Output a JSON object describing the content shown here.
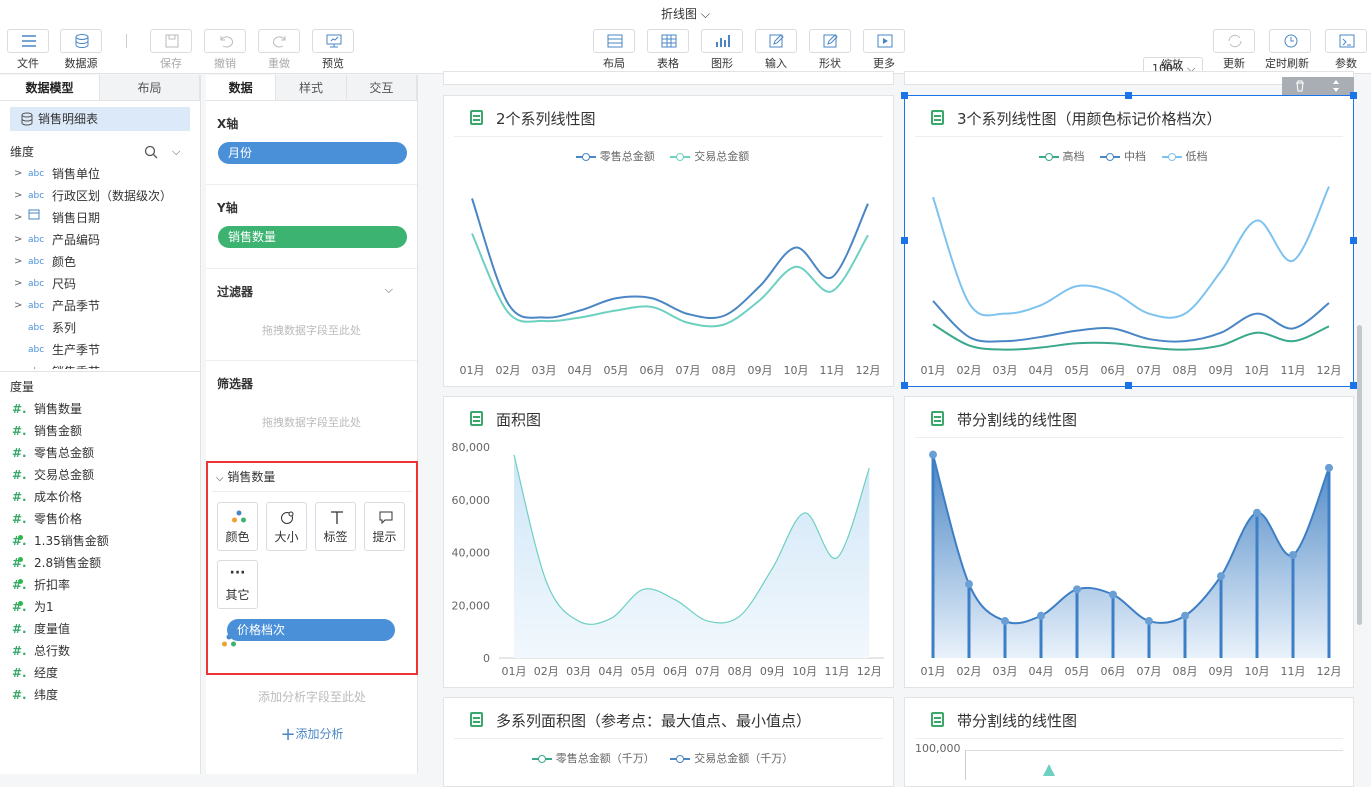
{
  "window": {
    "title": "折线图 ⌵"
  },
  "toolbar": {
    "file": "文件",
    "datasource": "数据源",
    "save": "保存",
    "undo": "撤销",
    "redo": "重做",
    "preview": "预览",
    "layout": "布局",
    "table": "表格",
    "graph": "图形",
    "input": "输入",
    "shape": "形状",
    "more": "更多",
    "zoom_value": "100%",
    "zoom": "缩放",
    "update": "更新",
    "timed_refresh": "定时刷新",
    "params": "参数"
  },
  "left": {
    "tab_model": "数据模型",
    "tab_layout": "布局",
    "table_name": "销售明细表",
    "dims_title": "维度",
    "dims": [
      "销售单位",
      "行政区划（数据级次）",
      "销售日期",
      "产品编码",
      "颜色",
      "尺码",
      "产品季节",
      "系列",
      "生产季节",
      "销售季节"
    ],
    "measures_title": "度量",
    "measures": [
      "销售数量",
      "销售金额",
      "零售总金额",
      "交易总金额",
      "成本价格",
      "零售价格",
      "1.35销售金额",
      "2.8销售金额",
      "折扣率",
      "为1",
      "度量值",
      "总行数",
      "经度",
      "纬度"
    ]
  },
  "mid": {
    "tab_data": "数据",
    "tab_style": "样式",
    "tab_interact": "交互",
    "xaxis": "X轴",
    "xfield": "月份",
    "yaxis": "Y轴",
    "yfield": "销售数量",
    "filter": "过滤器",
    "filter_drop": "拖拽数据字段至此处",
    "selector": "筛选器",
    "selector_drop": "拖拽数据字段至此处",
    "measure_section": "销售数量",
    "btn_color": "颜色",
    "btn_size": "大小",
    "btn_label": "标签",
    "btn_tip": "提示",
    "btn_other": "其它",
    "color_field": "价格档次",
    "analysis_drop": "添加分析字段至此处",
    "add_analysis": "添加分析"
  },
  "months": [
    "01月",
    "02月",
    "03月",
    "04月",
    "05月",
    "06月",
    "07月",
    "08月",
    "09月",
    "10月",
    "11月",
    "12月"
  ],
  "colors": {
    "accent": "#1a73e8",
    "pill_blue": "#4a90d9",
    "pill_green": "#3cb371",
    "line_a": "#4a86c5",
    "line_b": "#6dd0c0",
    "line_c": "#3aa88a",
    "line_d": "#7ec3f0"
  },
  "chart_data": [
    {
      "type": "line",
      "title": "2个系列线性图",
      "categories": [
        "01月",
        "02月",
        "03月",
        "04月",
        "05月",
        "06月",
        "07月",
        "08月",
        "09月",
        "10月",
        "11月",
        "12月"
      ],
      "series": [
        {
          "name": "零售总金额",
          "values": [
            90,
            30,
            22,
            26,
            33,
            33,
            24,
            23,
            40,
            62,
            45,
            87
          ]
        },
        {
          "name": "交易总金额",
          "values": [
            70,
            25,
            20,
            22,
            26,
            28,
            19,
            18,
            32,
            51,
            37,
            69
          ]
        }
      ]
    },
    {
      "type": "line",
      "title": "3个系列线性图（用颜色标记价格档次）",
      "categories": [
        "01月",
        "02月",
        "03月",
        "04月",
        "05月",
        "06月",
        "07月",
        "08月",
        "09月",
        "10月",
        "11月",
        "12月"
      ],
      "series": [
        {
          "name": "高档",
          "values": [
            15,
            5,
            3,
            4,
            6,
            6,
            4,
            3,
            5,
            11,
            7,
            14
          ]
        },
        {
          "name": "中档",
          "values": [
            26,
            9,
            7,
            9,
            12,
            13,
            8,
            7,
            11,
            20,
            13,
            25
          ]
        },
        {
          "name": "低档",
          "values": [
            75,
            25,
            20,
            24,
            33,
            30,
            20,
            20,
            40,
            64,
            45,
            80
          ]
        }
      ]
    },
    {
      "type": "area",
      "title": "面积图",
      "categories": [
        "01月",
        "02月",
        "03月",
        "04月",
        "05月",
        "06月",
        "07月",
        "08月",
        "09月",
        "10月",
        "11月",
        "12月"
      ],
      "yticks": [
        "80,000",
        "60,000",
        "40,000",
        "20,000",
        "0"
      ],
      "ylim": [
        0,
        80000
      ],
      "values": [
        77000,
        29000,
        14000,
        15000,
        26000,
        22000,
        14000,
        16000,
        34000,
        55000,
        38000,
        72000
      ]
    },
    {
      "type": "line",
      "title": "带分割线的线性图",
      "categories": [
        "01月",
        "02月",
        "03月",
        "04月",
        "05月",
        "06月",
        "07月",
        "08月",
        "09月",
        "10月",
        "11月",
        "12月"
      ],
      "values": [
        77,
        28,
        14,
        16,
        26,
        24,
        14,
        16,
        31,
        55,
        39,
        72
      ]
    },
    {
      "type": "area",
      "title": "多系列面积图（参考点：最大值点、最小值点）",
      "series": [
        {
          "name": "零售总金额（千万）"
        },
        {
          "name": "交易总金额（千万）"
        }
      ]
    },
    {
      "type": "line",
      "title": "带分割线的线性图",
      "yticks": [
        "100,000"
      ]
    }
  ]
}
